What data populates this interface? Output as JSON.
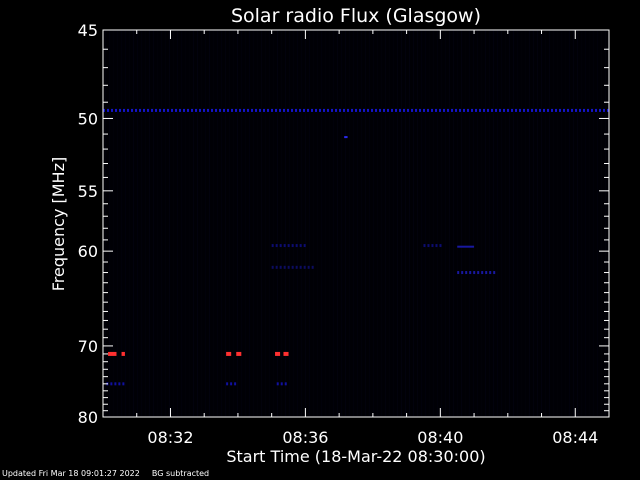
{
  "chart_data": {
    "type": "heatmap",
    "title": "Solar radio Flux (Glasgow)",
    "xlabel": "Start Time (18-Mar-22 08:30:00)",
    "ylabel": "Frequency [MHz]",
    "x_unit": "minutes after 08:30",
    "xlim": [
      0,
      15
    ],
    "ylim": [
      80,
      45
    ],
    "y_scale": "reciprocal",
    "x_ticks": [
      {
        "value": 2,
        "label": "08:32"
      },
      {
        "value": 6,
        "label": "08:36"
      },
      {
        "value": 10,
        "label": "08:40"
      },
      {
        "value": 14,
        "label": "08:44"
      }
    ],
    "y_ticks": [
      {
        "value": 45,
        "label": "45"
      },
      {
        "value": 50,
        "label": "50"
      },
      {
        "value": 55,
        "label": "55"
      },
      {
        "value": 60,
        "label": "60"
      },
      {
        "value": 70,
        "label": "70"
      },
      {
        "value": 80,
        "label": "80"
      }
    ],
    "background_color": "#000005",
    "features": [
      {
        "name": "persistent band",
        "freq": 49.5,
        "x_start": 0,
        "x_end": 15,
        "color": "#1414c8",
        "style": "dotted"
      },
      {
        "name": "dot",
        "freq": 51.2,
        "x_start": 7.15,
        "x_end": 7.25,
        "color": "#2a2af0",
        "style": "solid"
      },
      {
        "name": "weak band",
        "freq": 59.5,
        "x_start": 5.0,
        "x_end": 6.0,
        "color": "#0c0c70",
        "style": "dotted"
      },
      {
        "name": "weak band",
        "freq": 61.5,
        "x_start": 5.0,
        "x_end": 6.2,
        "color": "#0c0c60",
        "style": "dotted"
      },
      {
        "name": "weak band",
        "freq": 59.5,
        "x_start": 9.5,
        "x_end": 10.0,
        "color": "#0c0c70",
        "style": "dotted"
      },
      {
        "name": "weak band",
        "freq": 59.6,
        "x_start": 10.5,
        "x_end": 11.0,
        "color": "#1818a0",
        "style": "solid"
      },
      {
        "name": "weak band",
        "freq": 62.0,
        "x_start": 10.5,
        "x_end": 11.6,
        "color": "#1818a0",
        "style": "dotted"
      },
      {
        "name": "weak band",
        "freq": 75.0,
        "x_start": 0.1,
        "x_end": 0.6,
        "color": "#1010a0",
        "style": "dotted"
      },
      {
        "name": "weak band",
        "freq": 75.0,
        "x_start": 3.65,
        "x_end": 4.0,
        "color": "#1010a0",
        "style": "dotted"
      },
      {
        "name": "weak band",
        "freq": 75.0,
        "x_start": 5.15,
        "x_end": 5.5,
        "color": "#1010a0",
        "style": "dotted"
      },
      {
        "name": "burst",
        "freq": 71.0,
        "x_start": 0.15,
        "x_end": 0.4,
        "color": "#ff3030",
        "style": "solid"
      },
      {
        "name": "burst",
        "freq": 71.0,
        "x_start": 0.55,
        "x_end": 0.65,
        "color": "#ff3030",
        "style": "solid"
      },
      {
        "name": "burst",
        "freq": 71.0,
        "x_start": 3.65,
        "x_end": 3.8,
        "color": "#ff3030",
        "style": "solid"
      },
      {
        "name": "burst",
        "freq": 71.0,
        "x_start": 3.95,
        "x_end": 4.1,
        "color": "#ff3030",
        "style": "solid"
      },
      {
        "name": "burst",
        "freq": 71.0,
        "x_start": 5.1,
        "x_end": 5.25,
        "color": "#ff3030",
        "style": "solid"
      },
      {
        "name": "burst",
        "freq": 71.0,
        "x_start": 5.35,
        "x_end": 5.5,
        "color": "#ff3030",
        "style": "solid"
      }
    ]
  },
  "footer": {
    "updated": "Updated Fri Mar 18 09:01:27 2022",
    "note": "BG subtracted"
  }
}
